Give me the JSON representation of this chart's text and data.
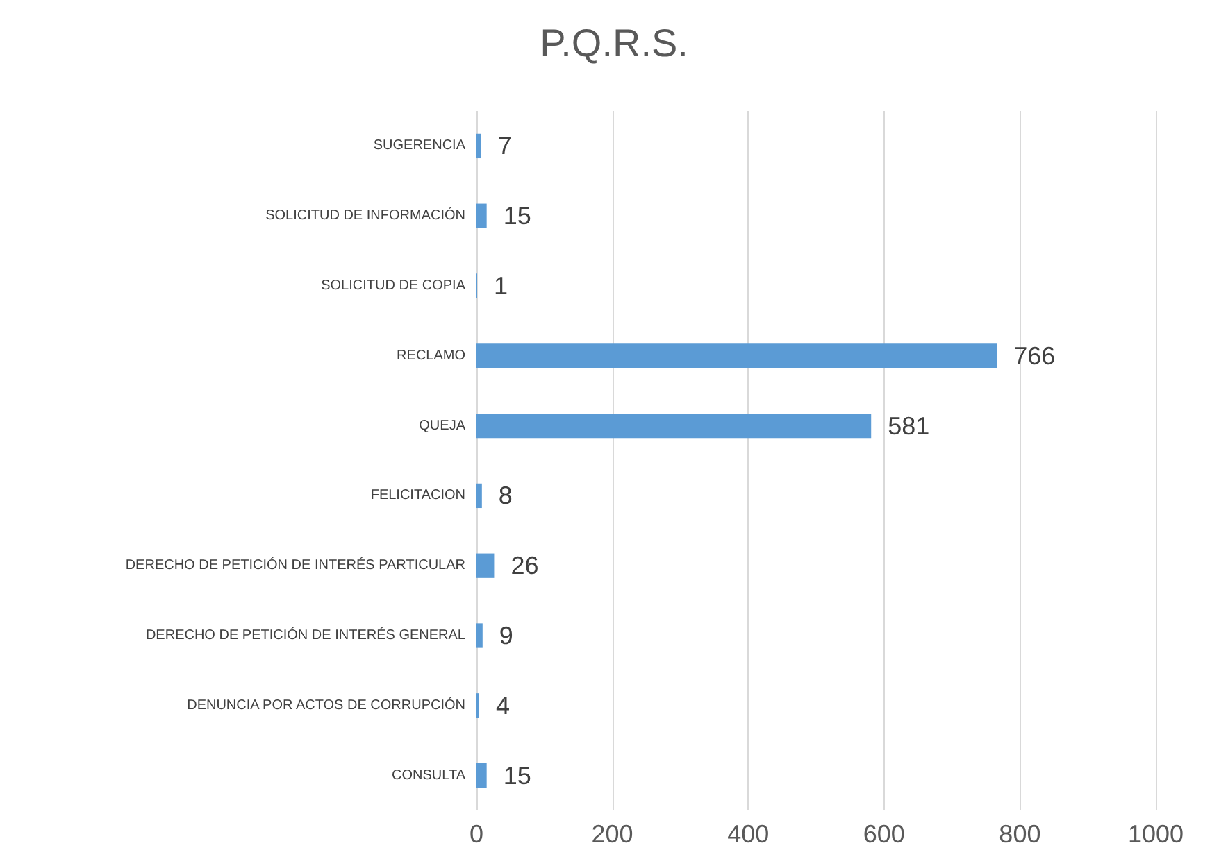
{
  "chart_data": {
    "type": "bar",
    "orientation": "horizontal",
    "title": "P.Q.R.S.",
    "categories": [
      "SUGERENCIA",
      "SOLICITUD DE INFORMACIÓN",
      "SOLICITUD DE COPIA",
      "RECLAMO",
      "QUEJA",
      "FELICITACION",
      "DERECHO DE PETICIÓN DE INTERÉS PARTICULAR",
      "DERECHO DE PETICIÓN DE INTERÉS GENERAL",
      "DENUNCIA POR ACTOS DE CORRUPCIÓN",
      "CONSULTA"
    ],
    "values": [
      7,
      15,
      1,
      766,
      581,
      8,
      26,
      9,
      4,
      15
    ],
    "color": "#5b9bd5",
    "xlim": [
      0,
      1000
    ],
    "xticks": [
      0,
      200,
      400,
      600,
      800,
      1000
    ],
    "grid": "x",
    "data_labels": true
  }
}
